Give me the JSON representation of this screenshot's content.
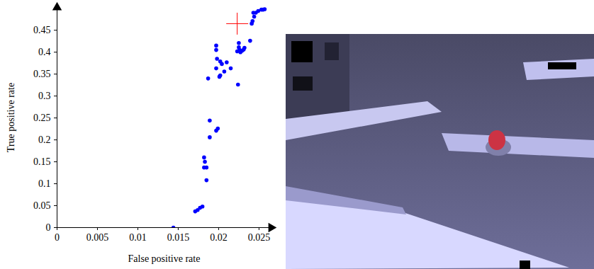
{
  "chart_data": {
    "type": "scatter",
    "x_label": "False positive rate",
    "y_label": "True positive rate",
    "xlim": [
      0,
      0.0265
    ],
    "ylim": [
      0,
      0.502
    ],
    "xticks": [
      0,
      0.005,
      0.01,
      0.015,
      0.02,
      0.025
    ],
    "yticks": [
      0,
      0.05,
      0.1,
      0.15,
      0.2,
      0.25,
      0.3,
      0.35,
      0.4,
      0.45
    ],
    "grid": false,
    "series": [
      {
        "color": "#0000ff",
        "marker": "circle",
        "x": [
          0.0144,
          0.0171,
          0.0174,
          0.0177,
          0.018,
          0.0182,
          0.0183,
          0.0182,
          0.0185,
          0.0185,
          0.0187,
          0.0189,
          0.0189,
          0.0197,
          0.0199,
          0.0197,
          0.0197,
          0.0198,
          0.0197,
          0.0202,
          0.0204,
          0.0201,
          0.0202,
          0.0207,
          0.021,
          0.0215,
          0.0224,
          0.0223,
          0.0225,
          0.0225,
          0.0226,
          0.0227,
          0.0229,
          0.0231,
          0.0232,
          0.0239,
          0.0241,
          0.0242,
          0.0244,
          0.0243,
          0.0246,
          0.0249,
          0.0253,
          0.0255,
          0.0257
        ],
        "values": [
          0,
          0.037,
          0.04,
          0.045,
          0.048,
          0.16,
          0.15,
          0.137,
          0.137,
          0.108,
          0.34,
          0.244,
          0.206,
          0.221,
          0.226,
          0.415,
          0.405,
          0.385,
          0.363,
          0.379,
          0.373,
          0.344,
          0.347,
          0.356,
          0.377,
          0.363,
          0.326,
          0.402,
          0.421,
          0.411,
          0.405,
          0.4,
          0.403,
          0.406,
          0.41,
          0.426,
          0.465,
          0.471,
          0.481,
          0.49,
          0.49,
          0.494,
          0.497,
          0.497,
          0.498
        ]
      },
      {
        "color": "#ff0000",
        "marker": "plus",
        "x": [
          0.0223
        ],
        "values": [
          0.465
        ]
      }
    ]
  }
}
